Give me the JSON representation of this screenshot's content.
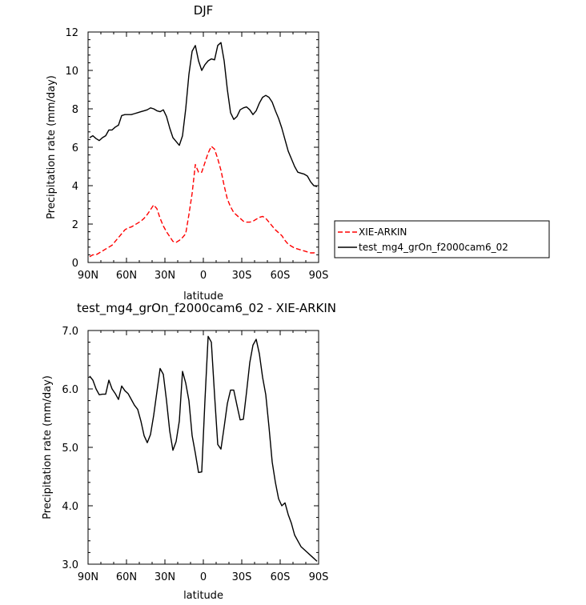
{
  "chart_data": [
    {
      "type": "line",
      "title": "DJF",
      "xlabel": "latitude",
      "ylabel": "Precipitation rate (mm/day)",
      "xlim": [
        -90,
        90
      ],
      "ylim": [
        0,
        12
      ],
      "x_ticks": [
        -90,
        -60,
        -30,
        0,
        30,
        60,
        90
      ],
      "x_tick_labels": [
        "90N",
        "60N",
        "30N",
        "0",
        "30S",
        "60S",
        "90S"
      ],
      "y_ticks": [
        0,
        2,
        4,
        6,
        8,
        10,
        12
      ],
      "y_tick_labels": [
        "0",
        "2",
        "4",
        "6",
        "8",
        "10",
        "12"
      ],
      "legend_position": "right",
      "series": [
        {
          "name": "XIE-ARKIN",
          "color": "#ff0000",
          "dash": "dashed",
          "x": [
            -88.75,
            -86.25,
            -83.75,
            -81.25,
            -78.75,
            -76.25,
            -73.75,
            -71.25,
            -68.75,
            -66.25,
            -63.75,
            -61.25,
            -58.75,
            -56.25,
            -53.75,
            -51.25,
            -48.75,
            -46.25,
            -43.75,
            -41.25,
            -38.75,
            -36.25,
            -33.75,
            -31.25,
            -28.75,
            -26.25,
            -23.75,
            -21.25,
            -18.75,
            -16.25,
            -13.75,
            -11.25,
            -8.75,
            -6.25,
            -3.75,
            -1.25,
            1.25,
            3.75,
            6.25,
            8.75,
            11.25,
            13.75,
            16.25,
            18.75,
            21.25,
            23.75,
            26.25,
            28.75,
            31.25,
            33.75,
            36.25,
            38.75,
            41.25,
            43.75,
            46.25,
            48.75,
            51.25,
            53.75,
            56.25,
            58.75,
            61.25,
            63.75,
            66.25,
            68.75,
            71.25,
            73.75,
            76.25,
            78.75,
            81.25,
            83.75,
            86.25,
            88.75
          ],
          "values": [
            0.3,
            0.4,
            0.4,
            0.5,
            0.6,
            0.7,
            0.8,
            0.9,
            1.1,
            1.3,
            1.5,
            1.7,
            1.8,
            1.85,
            1.95,
            2.05,
            2.15,
            2.3,
            2.5,
            2.75,
            3.0,
            2.8,
            2.3,
            1.9,
            1.6,
            1.35,
            1.1,
            1.05,
            1.15,
            1.3,
            1.5,
            2.5,
            3.6,
            5.1,
            4.7,
            4.7,
            5.2,
            5.7,
            6.05,
            5.9,
            5.4,
            4.8,
            4.0,
            3.3,
            2.9,
            2.6,
            2.45,
            2.3,
            2.15,
            2.1,
            2.1,
            2.15,
            2.25,
            2.35,
            2.4,
            2.3,
            2.1,
            1.9,
            1.7,
            1.55,
            1.4,
            1.15,
            0.95,
            0.85,
            0.75,
            0.7,
            0.65,
            0.6,
            0.55,
            0.5,
            0.5,
            0.55
          ]
        },
        {
          "name": "test_mg4_grOn_f2000cam6_02",
          "color": "#000000",
          "dash": "solid",
          "x": [
            -88.75,
            -86.25,
            -83.75,
            -81.25,
            -78.75,
            -76.25,
            -73.75,
            -71.25,
            -68.75,
            -66.25,
            -63.75,
            -61.25,
            -58.75,
            -56.25,
            -53.75,
            -51.25,
            -48.75,
            -46.25,
            -43.75,
            -41.25,
            -38.75,
            -36.25,
            -33.75,
            -31.25,
            -28.75,
            -26.25,
            -23.75,
            -21.25,
            -18.75,
            -16.25,
            -13.75,
            -11.25,
            -8.75,
            -6.25,
            -3.75,
            -1.25,
            1.25,
            3.75,
            6.25,
            8.75,
            11.25,
            13.75,
            16.25,
            18.75,
            21.25,
            23.75,
            26.25,
            28.75,
            31.25,
            33.75,
            36.25,
            38.75,
            41.25,
            43.75,
            46.25,
            48.75,
            51.25,
            53.75,
            56.25,
            58.75,
            61.25,
            63.75,
            66.25,
            68.75,
            71.25,
            73.75,
            76.25,
            78.75,
            81.25,
            83.75,
            86.25,
            88.75
          ],
          "values": [
            6.5,
            6.6,
            6.45,
            6.35,
            6.5,
            6.6,
            6.9,
            6.9,
            7.05,
            7.15,
            7.65,
            7.7,
            7.7,
            7.7,
            7.75,
            7.8,
            7.85,
            7.9,
            7.95,
            8.05,
            8.0,
            7.9,
            7.85,
            7.95,
            7.6,
            7.0,
            6.5,
            6.3,
            6.1,
            6.6,
            8.0,
            9.8,
            11.0,
            11.3,
            10.5,
            10.0,
            10.3,
            10.5,
            10.6,
            10.55,
            11.3,
            11.45,
            10.5,
            9.0,
            7.8,
            7.45,
            7.6,
            7.95,
            8.05,
            8.1,
            7.95,
            7.7,
            7.9,
            8.3,
            8.6,
            8.7,
            8.6,
            8.35,
            7.9,
            7.5,
            7.0,
            6.4,
            5.8,
            5.4,
            5.0,
            4.7,
            4.65,
            4.6,
            4.5,
            4.2,
            4.0,
            3.95
          ]
        }
      ]
    },
    {
      "type": "line",
      "title": "test_mg4_grOn_f2000cam6_02 - XIE-ARKIN",
      "xlabel": "latitude",
      "ylabel": "Precipitation rate (mm/day)",
      "xlim": [
        -90,
        90
      ],
      "ylim": [
        3.0,
        7.0
      ],
      "x_ticks": [
        -90,
        -60,
        -30,
        0,
        30,
        60,
        90
      ],
      "x_tick_labels": [
        "90N",
        "60N",
        "30N",
        "0",
        "30S",
        "60S",
        "90S"
      ],
      "y_ticks": [
        3,
        4,
        5,
        6,
        7
      ],
      "y_tick_labels": [
        "3.0",
        "4.0",
        "5.0",
        "6.0",
        "7.0"
      ],
      "series": [
        {
          "color": "#000000",
          "dash": "solid",
          "x": [
            -88.75,
            -86.25,
            -83.75,
            -81.25,
            -78.75,
            -76.25,
            -73.75,
            -71.25,
            -68.75,
            -66.25,
            -63.75,
            -61.25,
            -58.75,
            -56.25,
            -53.75,
            -51.25,
            -48.75,
            -46.25,
            -43.75,
            -41.25,
            -38.75,
            -36.25,
            -33.75,
            -31.25,
            -28.75,
            -26.25,
            -23.75,
            -21.25,
            -18.75,
            -16.25,
            -13.75,
            -11.25,
            -8.75,
            -6.25,
            -3.75,
            -1.25,
            1.25,
            3.75,
            6.25,
            8.75,
            11.25,
            13.75,
            16.25,
            18.75,
            21.25,
            23.75,
            26.25,
            28.75,
            31.25,
            33.75,
            36.25,
            38.75,
            41.25,
            43.75,
            46.25,
            48.75,
            51.25,
            53.75,
            56.25,
            58.75,
            61.25,
            63.75,
            66.25,
            68.75,
            71.25,
            73.75,
            76.25,
            78.75,
            81.25,
            83.75,
            86.25,
            88.75
          ],
          "values": [
            6.22,
            6.15,
            6.0,
            5.9,
            5.91,
            5.91,
            6.15,
            6.0,
            5.92,
            5.82,
            6.05,
            5.97,
            5.92,
            5.82,
            5.72,
            5.65,
            5.45,
            5.2,
            5.08,
            5.22,
            5.55,
            5.95,
            6.35,
            6.25,
            5.8,
            5.28,
            4.95,
            5.1,
            5.45,
            6.3,
            6.1,
            5.8,
            5.2,
            4.9,
            4.57,
            4.58,
            5.8,
            6.9,
            6.8,
            5.9,
            5.05,
            4.97,
            5.35,
            5.75,
            5.98,
            5.98,
            5.72,
            5.47,
            5.48,
            5.95,
            6.45,
            6.75,
            6.85,
            6.6,
            6.2,
            5.9,
            5.35,
            4.75,
            4.4,
            4.12,
            4.0,
            4.05,
            3.85,
            3.7,
            3.5,
            3.4,
            3.3,
            3.25,
            3.2,
            3.15,
            3.1,
            3.05
          ]
        }
      ]
    }
  ]
}
